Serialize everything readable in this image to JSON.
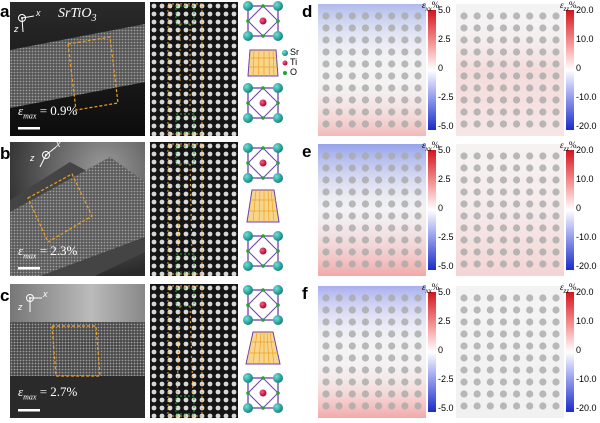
{
  "title": "SrTiO",
  "title_sub": "3",
  "rows": [
    {
      "label": "a",
      "emax": "0.9%"
    },
    {
      "label": "b",
      "emax": "2.3%"
    },
    {
      "label": "c",
      "emax": "2.7%"
    }
  ],
  "emax_symbol": "ε",
  "emax_sub": "max",
  "emax_eq": " = ",
  "axis": {
    "z": "z",
    "x": "x"
  },
  "legend": {
    "sr": "Sr",
    "ti": "Ti",
    "o": "O",
    "sr_color": "#1aa7a0",
    "ti_color": "#c8003c",
    "o_color": "#22a52c"
  },
  "maps": [
    {
      "label": "d",
      "exx_label": "ε",
      "exx_sub": "xx",
      "zz_label": "ε",
      "zz_sub": "zz",
      "unit": "%",
      "exx_ticks": [
        "5.0",
        "2.5",
        "0",
        "-2.5",
        "-5.0"
      ],
      "ezz_ticks": [
        "20.0",
        "10.0",
        "0",
        "-10.0",
        "-20.0"
      ]
    },
    {
      "label": "e",
      "exx_label": "ε",
      "exx_sub": "xx",
      "zz_label": "ε",
      "zz_sub": "zz",
      "unit": "%",
      "exx_ticks": [
        "5.0",
        "2.5",
        "0",
        "-2.5",
        "-5.0"
      ],
      "ezz_ticks": [
        "20.0",
        "10.0",
        "0",
        "-10.0",
        "-20.0"
      ]
    },
    {
      "label": "f",
      "exx_label": "ε",
      "exx_sub": "xx",
      "zz_label": "ε",
      "zz_sub": "zz",
      "unit": "%",
      "exx_ticks": [
        "5.0",
        "2.5",
        "0",
        "-2.5",
        "-5.0"
      ],
      "ezz_ticks": [
        "20.0",
        "10.0",
        "0",
        "-10.0",
        "-20.0"
      ]
    }
  ],
  "colors": {
    "box": "#f0a020",
    "purple": "#6a3fb0",
    "grid": "#f0a020",
    "cb_red": "#d4141c",
    "cb_blue": "#1a2cc8"
  }
}
